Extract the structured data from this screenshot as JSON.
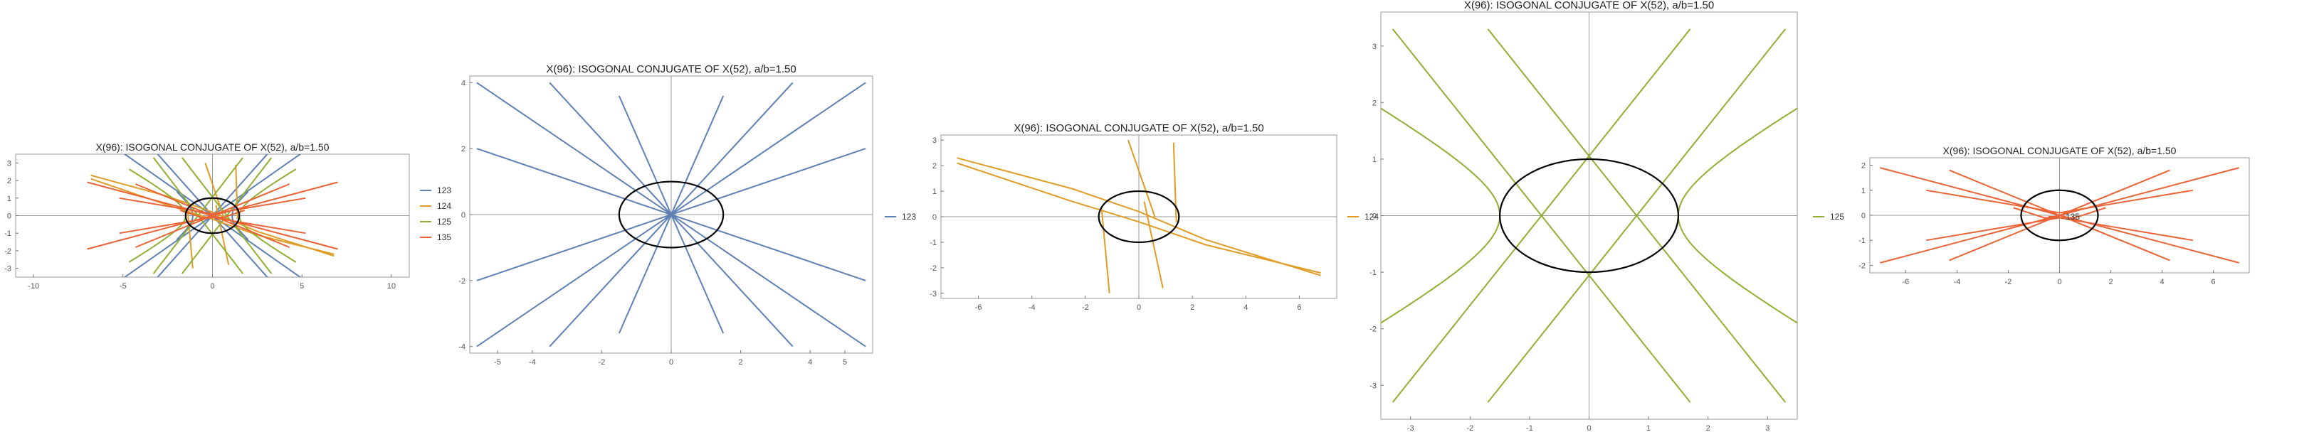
{
  "colors": {
    "123": "#5e81b5",
    "124": "#e19c24",
    "125": "#8fb032",
    "135": "#eb6235",
    "ellipse": "#000000"
  },
  "chart_data": [
    {
      "type": "line",
      "title": "X(96): ISOGONAL CONJUGATE OF X(52), a/b=1.50",
      "xlim": [
        -11,
        11
      ],
      "ylim": [
        -3.5,
        3.5
      ],
      "xticks": [
        -10,
        -5,
        0,
        5,
        10
      ],
      "yticks": [
        -3,
        -2,
        -1,
        0,
        1,
        2,
        3
      ],
      "legend": [
        "123",
        "124",
        "125",
        "135"
      ],
      "legend_placement": "right",
      "grid": false
    },
    {
      "type": "line",
      "title": "X(96): ISOGONAL CONJUGATE OF X(52), a/b=1.50",
      "xlim": [
        -5.8,
        5.8
      ],
      "ylim": [
        -4.2,
        4.2
      ],
      "xticks": [
        -5,
        -4,
        -2,
        0,
        2,
        4,
        5
      ],
      "yticks": [
        -4,
        -2,
        0,
        2,
        4
      ],
      "legend": [
        "123"
      ],
      "legend_placement": "right",
      "grid": false
    },
    {
      "type": "line",
      "title": "X(96): ISOGONAL CONJUGATE OF X(52), a/b=1.50",
      "xlim": [
        -7.4,
        7.4
      ],
      "ylim": [
        -3.2,
        3.2
      ],
      "xticks": [
        -6,
        -4,
        -2,
        0,
        2,
        4,
        6
      ],
      "yticks": [
        -3,
        -2,
        -1,
        0,
        1,
        2,
        3
      ],
      "legend": [
        "124"
      ],
      "legend_placement": "right",
      "grid": false
    },
    {
      "type": "line",
      "title": "X(96): ISOGONAL CONJUGATE OF X(52), a/b=1.50",
      "xlim": [
        -3.5,
        3.5
      ],
      "ylim": [
        -3.6,
        3.6
      ],
      "xticks": [
        -3,
        -2,
        -1,
        0,
        1,
        2,
        3
      ],
      "yticks": [
        -3,
        -2,
        -1,
        0,
        1,
        2,
        3
      ],
      "legend": [
        "125"
      ],
      "legend_placement": "right",
      "grid": false
    },
    {
      "type": "line",
      "title": "X(96): ISOGONAL CONJUGATE OF X(52), a/b=1.50",
      "xlim": [
        -7.4,
        7.4
      ],
      "ylim": [
        -2.3,
        2.3
      ],
      "xticks": [
        -6,
        -4,
        -2,
        0,
        2,
        4,
        6
      ],
      "yticks": [
        -2,
        -1,
        0,
        1,
        2
      ],
      "legend": [
        "135"
      ],
      "legend_placement": "right",
      "grid": false
    }
  ]
}
